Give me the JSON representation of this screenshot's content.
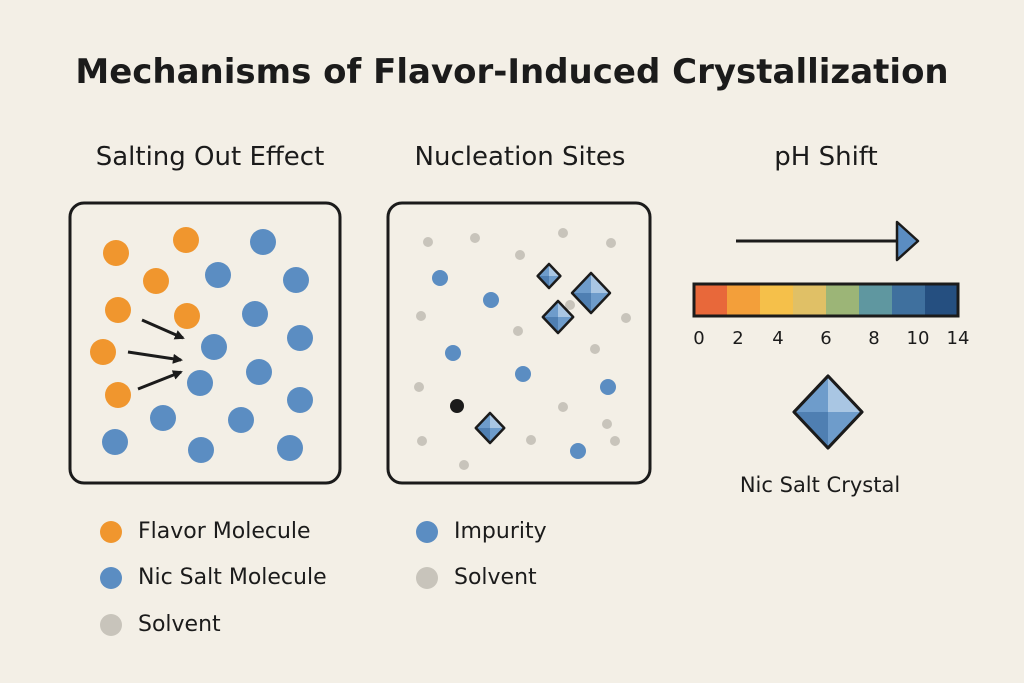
{
  "title": "Mechanisms of Flavor-Induced Crystallization",
  "panels": [
    {
      "title": "Salting Out Effect",
      "legend": [
        {
          "label": "Flavor Molecule",
          "color": "#f0962e"
        },
        {
          "label": "Nic Salt Molecule",
          "color": "#5b8dc2"
        },
        {
          "label": "Solvent",
          "color": "#c8c4bb"
        }
      ]
    },
    {
      "title": "Nucleation Sites",
      "legend": [
        {
          "label": "Impurity",
          "color": "#5b8dc2"
        },
        {
          "label": "Solvent",
          "color": "#c8c4bb"
        }
      ]
    },
    {
      "title": "pH Shift",
      "scale_ticks": [
        "0",
        "2",
        "4",
        "6",
        "8",
        "10",
        "14"
      ],
      "scale_colors": [
        "#e8683a",
        "#f39f3a",
        "#f5c04a",
        "#e0c066",
        "#9cb577",
        "#5f97a0",
        "#3f709e",
        "#254f80"
      ],
      "crystal_label": "Nic Salt Crystal"
    }
  ],
  "colors": {
    "background": "#f3efe6",
    "flavor": "#f0962e",
    "nic_salt": "#5b8dc2",
    "solvent": "#c8c4bb",
    "outline": "#1b1b1b"
  }
}
